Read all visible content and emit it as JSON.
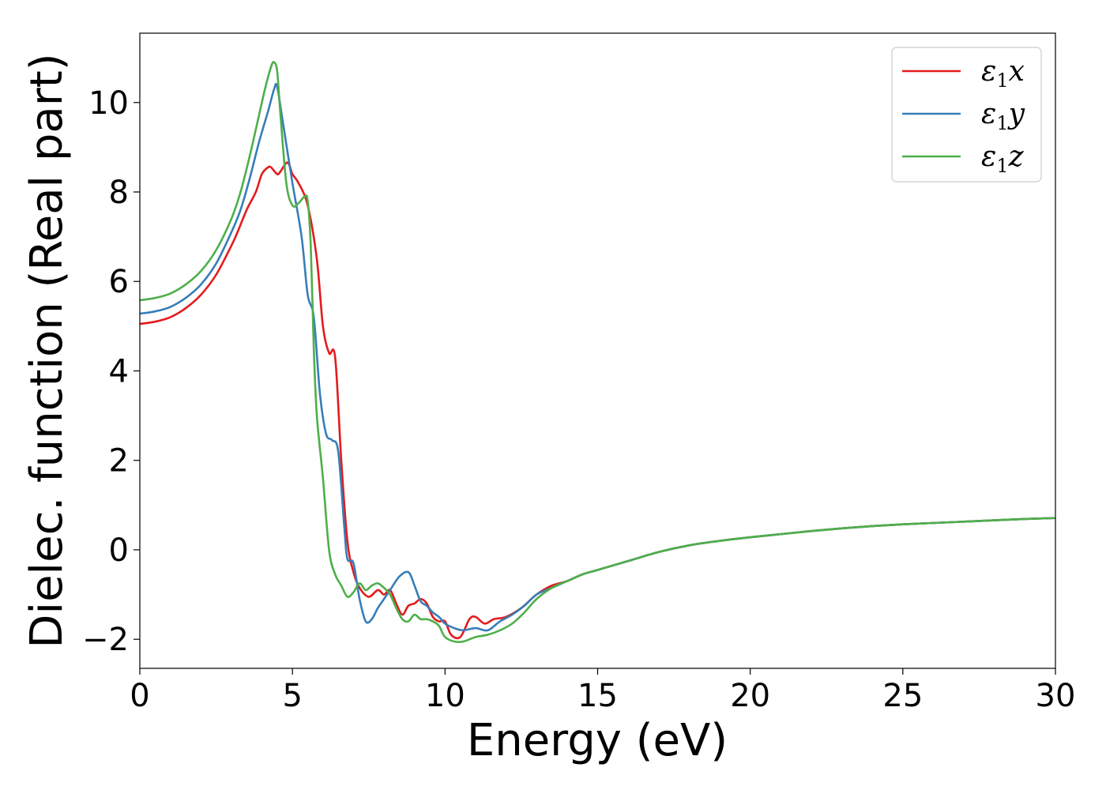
{
  "chart_data": {
    "type": "line",
    "xlabel": "Energy (eV)",
    "ylabel": "Dielec. function (Real part)",
    "xlim": [
      0,
      30
    ],
    "ylim": [
      -2.65,
      11.55
    ],
    "xticks": [
      0,
      5,
      10,
      15,
      20,
      25,
      30
    ],
    "xtick_labels": [
      "0",
      "5",
      "10",
      "15",
      "20",
      "25",
      "30"
    ],
    "yticks": [
      -2,
      0,
      2,
      4,
      6,
      8,
      10
    ],
    "ytick_labels": [
      "−2",
      "0",
      "2",
      "4",
      "6",
      "8",
      "10"
    ],
    "grid": false,
    "legend_position": "top-right",
    "series": [
      {
        "name": "ε₁x",
        "legend_symbol": "ε",
        "legend_sub": "1",
        "legend_tail": "x",
        "color": "#e41a1c",
        "x": [
          0,
          0.5,
          1.0,
          1.5,
          2.0,
          2.5,
          3.0,
          3.2,
          3.5,
          3.8,
          4.0,
          4.2,
          4.3,
          4.5,
          4.6,
          4.8,
          4.9,
          5.0,
          5.2,
          5.5,
          5.8,
          6.0,
          6.2,
          6.4,
          6.6,
          6.8,
          7.0,
          7.2,
          7.5,
          7.8,
          8.0,
          8.2,
          8.4,
          8.6,
          8.8,
          9.0,
          9.2,
          9.4,
          9.6,
          9.8,
          10.0,
          10.2,
          10.5,
          10.8,
          11.0,
          11.3,
          11.6,
          12.0,
          12.5,
          13.0,
          13.5,
          14.0,
          14.5,
          15.0,
          16.0,
          17.0,
          18.0,
          19.0,
          20.0,
          21.0,
          22.0,
          23.0,
          24.0,
          25.0,
          26.0,
          27.0,
          28.0,
          29.0,
          30.0
        ],
        "values": [
          5.05,
          5.1,
          5.2,
          5.4,
          5.7,
          6.15,
          6.8,
          7.1,
          7.6,
          8.0,
          8.4,
          8.55,
          8.55,
          8.4,
          8.45,
          8.65,
          8.6,
          8.4,
          8.2,
          7.7,
          6.5,
          5.0,
          4.4,
          4.3,
          2.0,
          0.2,
          -0.5,
          -0.85,
          -1.05,
          -0.9,
          -1.0,
          -0.9,
          -1.2,
          -1.45,
          -1.25,
          -1.2,
          -1.1,
          -1.2,
          -1.5,
          -1.6,
          -1.6,
          -1.9,
          -1.95,
          -1.55,
          -1.5,
          -1.65,
          -1.55,
          -1.5,
          -1.3,
          -1.0,
          -0.8,
          -0.7,
          -0.55,
          -0.45,
          -0.25,
          -0.05,
          0.1,
          0.2,
          0.28,
          0.35,
          0.42,
          0.48,
          0.53,
          0.57,
          0.6,
          0.63,
          0.66,
          0.69,
          0.71
        ]
      },
      {
        "name": "ε₁y",
        "legend_symbol": "ε",
        "legend_sub": "1",
        "legend_tail": "y",
        "color": "#377eb8",
        "x": [
          0,
          0.5,
          1.0,
          1.5,
          2.0,
          2.5,
          3.0,
          3.3,
          3.6,
          3.9,
          4.2,
          4.4,
          4.5,
          4.7,
          5.0,
          5.3,
          5.5,
          5.7,
          5.9,
          6.1,
          6.3,
          6.5,
          6.7,
          6.8,
          7.0,
          7.2,
          7.4,
          7.6,
          7.8,
          8.0,
          8.2,
          8.5,
          8.8,
          9.0,
          9.2,
          9.4,
          9.6,
          9.8,
          10.0,
          10.3,
          10.6,
          11.0,
          11.4,
          11.8,
          12.2,
          12.6,
          13.0,
          13.5,
          14.0,
          14.5,
          15.0,
          16.0,
          17.0,
          18.0,
          19.0,
          20.0,
          21.0,
          22.0,
          23.0,
          24.0,
          25.0,
          26.0,
          27.0,
          28.0,
          29.0,
          30.0
        ],
        "values": [
          5.28,
          5.33,
          5.43,
          5.63,
          5.93,
          6.4,
          7.1,
          7.6,
          8.3,
          9.1,
          9.8,
          10.3,
          10.35,
          9.5,
          8.2,
          7.0,
          5.7,
          5.2,
          3.5,
          2.6,
          2.45,
          2.2,
          0.5,
          -0.2,
          -0.3,
          -1.1,
          -1.6,
          -1.55,
          -1.3,
          -1.1,
          -0.9,
          -0.6,
          -0.5,
          -0.8,
          -1.15,
          -1.25,
          -1.4,
          -1.5,
          -1.65,
          -1.75,
          -1.8,
          -1.75,
          -1.8,
          -1.6,
          -1.45,
          -1.25,
          -1.0,
          -0.85,
          -0.7,
          -0.55,
          -0.45,
          -0.25,
          -0.05,
          0.1,
          0.2,
          0.28,
          0.35,
          0.42,
          0.48,
          0.53,
          0.57,
          0.6,
          0.63,
          0.66,
          0.69,
          0.71
        ]
      },
      {
        "name": "ε₁z",
        "legend_symbol": "ε",
        "legend_sub": "1",
        "legend_tail": "z",
        "color": "#4daf4a",
        "x": [
          0,
          0.5,
          1.0,
          1.5,
          2.0,
          2.5,
          3.0,
          3.3,
          3.6,
          3.9,
          4.1,
          4.3,
          4.4,
          4.5,
          4.6,
          4.8,
          5.0,
          5.2,
          5.4,
          5.5,
          5.6,
          5.7,
          5.8,
          6.0,
          6.2,
          6.4,
          6.6,
          6.8,
          7.0,
          7.2,
          7.4,
          7.6,
          7.8,
          8.0,
          8.2,
          8.4,
          8.6,
          8.8,
          9.0,
          9.2,
          9.4,
          9.6,
          9.8,
          10.0,
          10.3,
          10.6,
          11.0,
          11.4,
          11.8,
          12.2,
          12.6,
          13.0,
          13.5,
          14.0,
          14.5,
          15.0,
          16.0,
          17.0,
          18.0,
          19.0,
          20.0,
          21.0,
          22.0,
          23.0,
          24.0,
          25.0,
          26.0,
          27.0,
          28.0,
          29.0,
          30.0
        ],
        "values": [
          5.58,
          5.63,
          5.73,
          5.93,
          6.23,
          6.7,
          7.4,
          8.0,
          8.8,
          9.7,
          10.3,
          10.8,
          10.9,
          10.7,
          9.8,
          8.2,
          7.7,
          7.75,
          7.9,
          7.8,
          6.8,
          4.5,
          3.0,
          1.6,
          0.0,
          -0.55,
          -0.8,
          -1.05,
          -0.95,
          -0.75,
          -0.9,
          -0.8,
          -0.75,
          -0.85,
          -1.0,
          -1.3,
          -1.55,
          -1.6,
          -1.45,
          -1.55,
          -1.55,
          -1.6,
          -1.7,
          -1.95,
          -2.05,
          -2.05,
          -1.95,
          -1.9,
          -1.8,
          -1.65,
          -1.4,
          -1.1,
          -0.85,
          -0.7,
          -0.55,
          -0.45,
          -0.25,
          -0.05,
          0.1,
          0.2,
          0.28,
          0.35,
          0.42,
          0.48,
          0.53,
          0.57,
          0.6,
          0.63,
          0.66,
          0.69,
          0.71
        ]
      }
    ]
  }
}
